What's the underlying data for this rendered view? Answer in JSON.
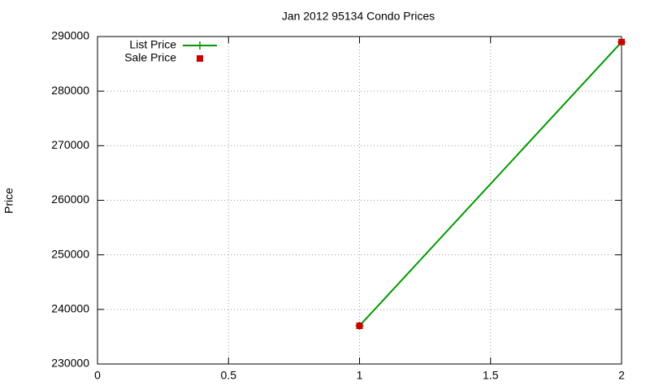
{
  "chart_data": {
    "type": "line",
    "title": "Jan 2012 95134 Condo Prices",
    "y_label": "Price",
    "x": [
      1,
      2
    ],
    "series": [
      {
        "name": "List Price",
        "color": "#009900",
        "style": "linespoints",
        "marker": "plus",
        "values": [
          237000,
          289000
        ]
      },
      {
        "name": "Sale Price",
        "color": "#cc0000",
        "style": "points",
        "marker": "square",
        "values": [
          237000,
          289000
        ]
      }
    ],
    "xlim": [
      0,
      2
    ],
    "xticks": [
      0,
      0.5,
      1,
      1.5,
      2
    ],
    "ylim": [
      230000,
      290000
    ],
    "yticks": [
      230000,
      240000,
      250000,
      260000,
      270000,
      280000,
      290000
    ],
    "grid": true,
    "legend": "top-left"
  }
}
